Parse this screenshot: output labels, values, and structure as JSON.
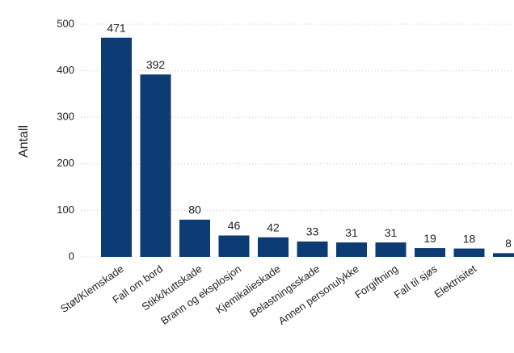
{
  "chart_data": {
    "type": "bar",
    "y_label": "Antall",
    "categories": [
      "Støt/Klemskade",
      "Fall om bord",
      "Stikk/kuttskade",
      "Brann og eksplosjon",
      "Kjemikalieskade",
      "Belastningsskade",
      "Annen personulykke",
      "Forgiftning",
      "Fall til sjøs",
      "Elektrisitet",
      null
    ],
    "values": [
      471,
      392,
      80,
      46,
      42,
      33,
      31,
      31,
      19,
      18,
      8
    ],
    "color": "#0d3b73",
    "ylim": [
      0,
      500
    ],
    "yticks": [
      0,
      100,
      200,
      300,
      400,
      500
    ],
    "grid": true
  }
}
